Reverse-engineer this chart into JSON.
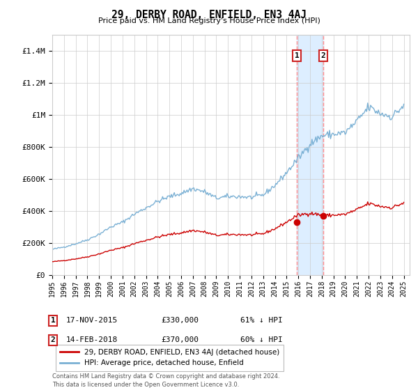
{
  "title": "29, DERBY ROAD, ENFIELD, EN3 4AJ",
  "subtitle": "Price paid vs. HM Land Registry's House Price Index (HPI)",
  "ylabel_ticks": [
    "£0",
    "£200K",
    "£400K",
    "£600K",
    "£800K",
    "£1M",
    "£1.2M",
    "£1.4M"
  ],
  "ylim_max": 1500000,
  "xlim_start": 1995.0,
  "xlim_end": 2025.5,
  "purchase1": {
    "date_num": 2015.88,
    "price": 330000,
    "label": "1",
    "date_str": "17-NOV-2015",
    "price_str": "£330,000",
    "pct": "61% ↓ HPI"
  },
  "purchase2": {
    "date_num": 2018.12,
    "price": 370000,
    "label": "2",
    "date_str": "14-FEB-2018",
    "price_str": "£370,000",
    "pct": "60% ↓ HPI"
  },
  "legend_line1": "29, DERBY ROAD, ENFIELD, EN3 4AJ (detached house)",
  "legend_line2": "HPI: Average price, detached house, Enfield",
  "footer": "Contains HM Land Registry data © Crown copyright and database right 2024.\nThis data is licensed under the Open Government Licence v3.0.",
  "line_color_red": "#cc0000",
  "line_color_blue": "#7ab0d4",
  "highlight_color": "#ddeeff",
  "vline_color": "#ff8888",
  "grid_color": "#cccccc",
  "bg_color": "#ffffff",
  "box_edge_color": "#cc2222"
}
